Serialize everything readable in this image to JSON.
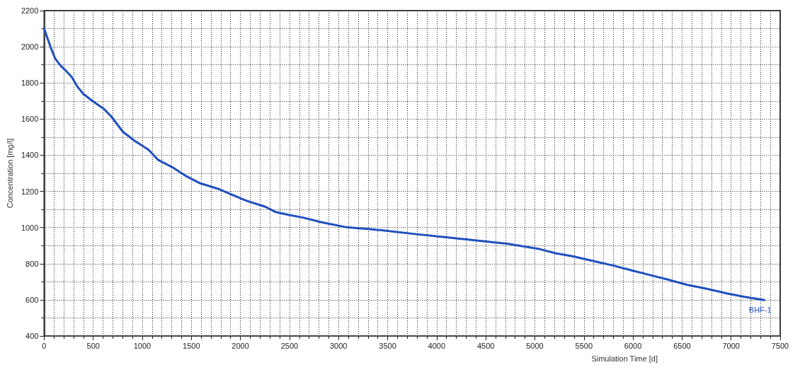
{
  "chart_data": {
    "type": "line",
    "xlabel": "Simulation Time [d]",
    "ylabel": "Concentration [mg/l]",
    "xlim": [
      0,
      7500
    ],
    "xticks": [
      0,
      500,
      1000,
      1500,
      2000,
      2500,
      3000,
      3500,
      4000,
      4500,
      5000,
      5500,
      6000,
      6500,
      7000,
      7500
    ],
    "ylim": [
      400,
      2200
    ],
    "yticks": [
      400,
      600,
      800,
      1000,
      1200,
      1400,
      1600,
      1800,
      2000,
      2200
    ],
    "grid": true,
    "line_style": "solid",
    "series": [
      {
        "name": "BHF-1",
        "color": "#1f4fbf",
        "x": [
          0,
          64,
          112,
          160,
          207,
          278,
          338,
          397,
          492,
          611,
          683,
          802,
          921,
          1064,
          1159,
          1302,
          1445,
          1588,
          1778,
          1920,
          2063,
          2253,
          2353,
          2491,
          2638,
          2828,
          3066,
          3422,
          3779,
          4135,
          4491,
          4729,
          4913,
          5054,
          5218,
          5383,
          5594,
          5805,
          5993,
          6181,
          6369,
          6554,
          6742,
          6953,
          7141,
          7340
        ],
        "values": [
          2100,
          2000,
          1935,
          1900,
          1875,
          1835,
          1780,
          1740,
          1700,
          1655,
          1615,
          1530,
          1480,
          1430,
          1375,
          1335,
          1285,
          1245,
          1213,
          1180,
          1148,
          1115,
          1087,
          1070,
          1055,
          1029,
          1003,
          986,
          964,
          944,
          923,
          910,
          893,
          880,
          857,
          841,
          815,
          789,
          762,
          736,
          710,
          683,
          662,
          636,
          616,
          599
        ]
      }
    ]
  }
}
